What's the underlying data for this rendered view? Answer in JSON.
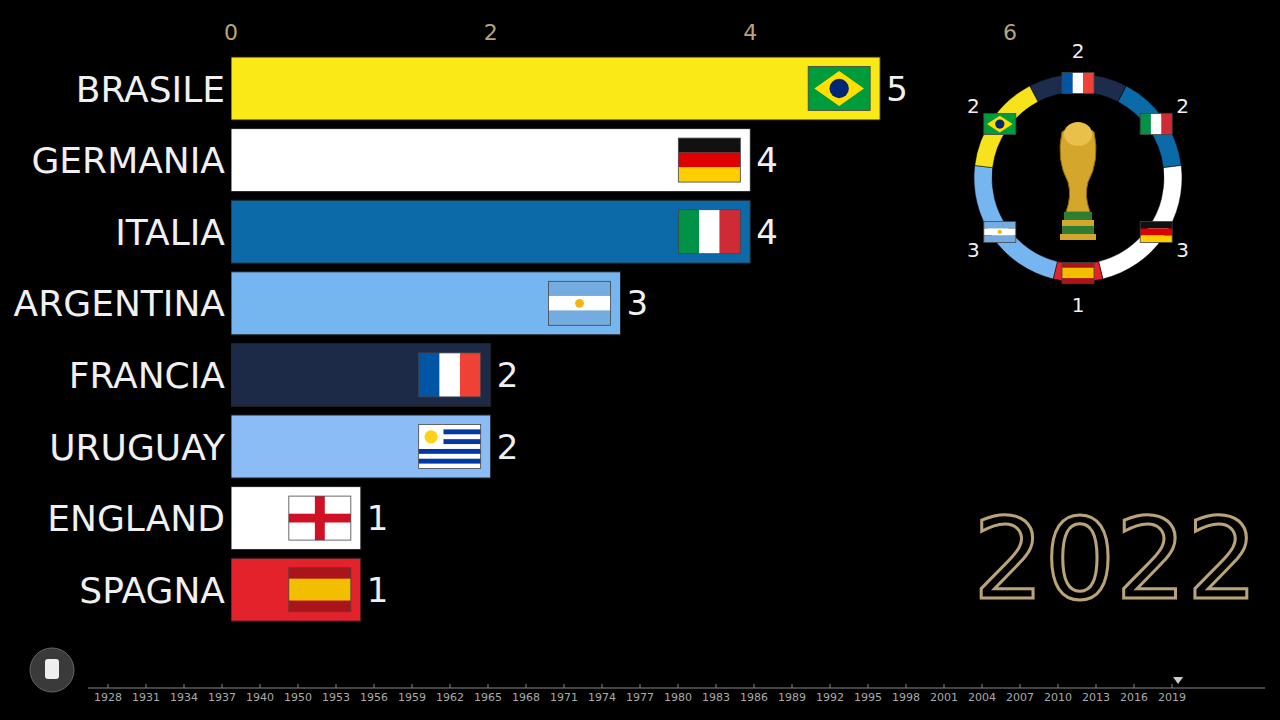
{
  "chart_data": [
    {
      "type": "bar",
      "orientation": "horizontal",
      "categories": [
        "BRASILE",
        "GERMANIA",
        "ITALIA",
        "ARGENTINA",
        "FRANCIA",
        "URUGUAY",
        "ENGLAND",
        "SPAGNA"
      ],
      "values": [
        5,
        4,
        4,
        3,
        2,
        2,
        1,
        1
      ],
      "colors": [
        "#fbe817",
        "#ffffff",
        "#0d6aa8",
        "#75b6f0",
        "#1c2a48",
        "#8cbcf5",
        "#ffffff",
        "#e3222b"
      ],
      "xlim": [
        0,
        6
      ],
      "xticks": [
        0,
        2,
        4,
        6
      ],
      "grid": false,
      "data_labels": true,
      "annotations": [
        "2022"
      ]
    },
    {
      "type": "pie",
      "categories": [
        null,
        null,
        null,
        null,
        null,
        null
      ],
      "values": [
        2,
        2,
        3,
        1,
        3,
        2
      ],
      "colors": [
        "#1d2c4c",
        "#0b6aa8",
        "#ffffff",
        "#e3222b",
        "#75b6f0",
        "#f7e31c"
      ],
      "data_labels": true
    },
    {
      "type": "timeline",
      "categories": [
        1928,
        1931,
        1934,
        1937,
        1940,
        1950,
        1953,
        1956,
        1959,
        1962,
        1965,
        1968,
        1971,
        1974,
        1977,
        1980,
        1983,
        1986,
        1989,
        1992,
        1995,
        1998,
        2001,
        2004,
        2007,
        2010,
        2013,
        2016,
        2019
      ],
      "current": 28.16
    }
  ]
}
